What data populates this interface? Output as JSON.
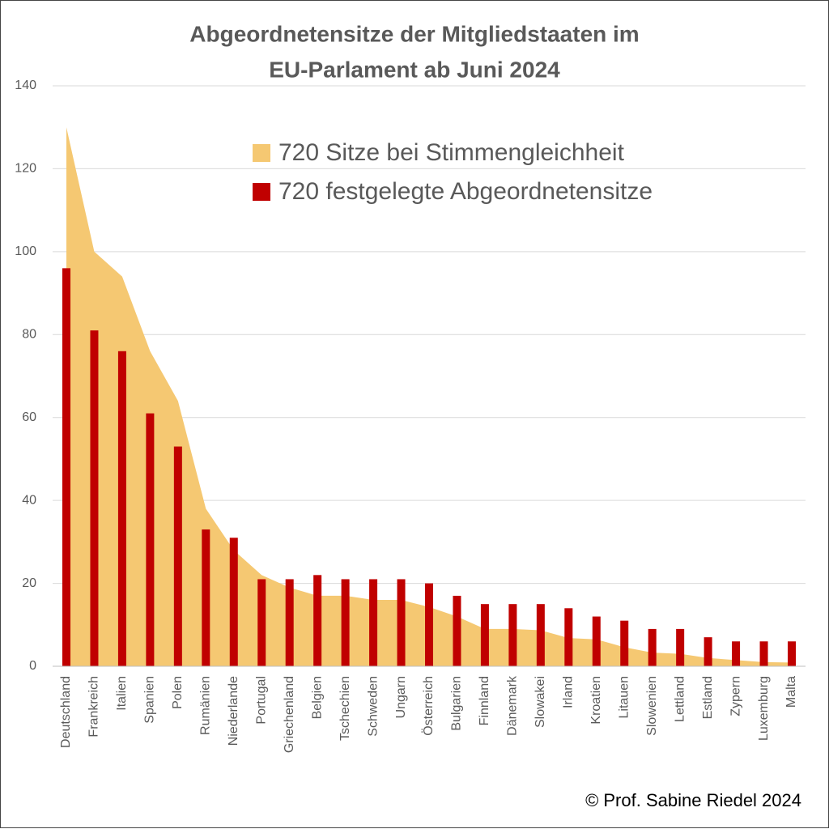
{
  "chart_data": {
    "type": "area-bar",
    "title": [
      "Abgeordnetensitze der Mitgliedstaaten im",
      "EU-Parlament ab Juni 2024"
    ],
    "categories": [
      "Deutschland",
      "Frankreich",
      "Italien",
      "Spanien",
      "Polen",
      "Rumänien",
      "Niederlande",
      "Portugal",
      "Griechenland",
      "Belgien",
      "Tschechien",
      "Schweden",
      "Ungarn",
      "Österreich",
      "Bulgarien",
      "Finnland",
      "Dänemark",
      "Slowakei",
      "Irland",
      "Kroatien",
      "Litauen",
      "Slowenien",
      "Lettland",
      "Estland",
      "Zypern",
      "Luxemburg",
      "Malta"
    ],
    "series": [
      {
        "name": "720 Sitze bei Stimmengleichheit",
        "kind": "area",
        "color": "#f5c872",
        "values": [
          130,
          100,
          94,
          76,
          64,
          38,
          28,
          22,
          19,
          17,
          17,
          16,
          16,
          14.3,
          12,
          9,
          9,
          8.7,
          6.8,
          6.5,
          4.6,
          3.3,
          3,
          2,
          1.5,
          1,
          0.9
        ]
      },
      {
        "name": "720 festgelegte Abgeordnetensitze",
        "kind": "bar",
        "color": "#c00000",
        "values": [
          96,
          81,
          76,
          61,
          53,
          33,
          31,
          21,
          21,
          22,
          21,
          21,
          21,
          20,
          17,
          15,
          15,
          15,
          14,
          12,
          11,
          9,
          9,
          7,
          6,
          6,
          6
        ]
      }
    ],
    "ylim": [
      0,
      140
    ],
    "yticks": [
      0,
      20,
      40,
      60,
      80,
      100,
      120,
      140
    ],
    "grid": true,
    "footer": "©  Prof. Sabine Riedel  2024"
  }
}
